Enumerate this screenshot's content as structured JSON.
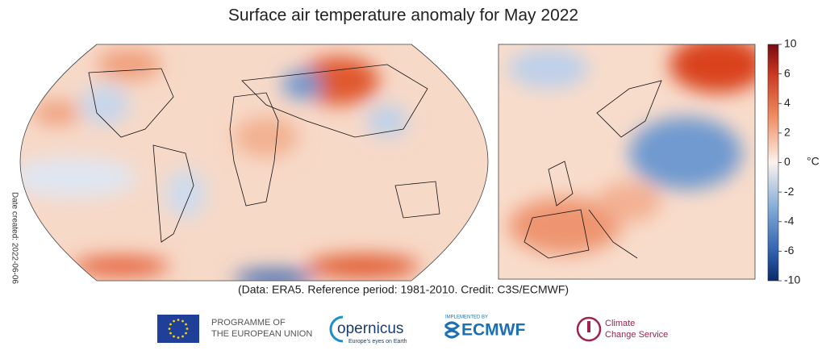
{
  "title": "Surface air temperature anomaly for May 2022",
  "colorbar": {
    "ticks": [
      "10",
      "6",
      "4",
      "2",
      "0",
      "-2",
      "-4",
      "-6",
      "-10"
    ],
    "unit": "°C"
  },
  "side_note": "Date created: 2022-06-06",
  "caption": "(Data: ERA5.  Reference period: 1981-2010.  Credit: C3S/ECMWF)",
  "logos": {
    "eu": [
      "PROGRAMME OF",
      "THE EUROPEAN UNION"
    ],
    "copernicus": {
      "name": "opernicus",
      "tagline": "Europe's eyes on Earth"
    },
    "ecmwf": {
      "small": "IMPLEMENTED BY",
      "name": "ECMWF"
    },
    "c3s": [
      "Climate",
      "Change Service"
    ]
  }
}
